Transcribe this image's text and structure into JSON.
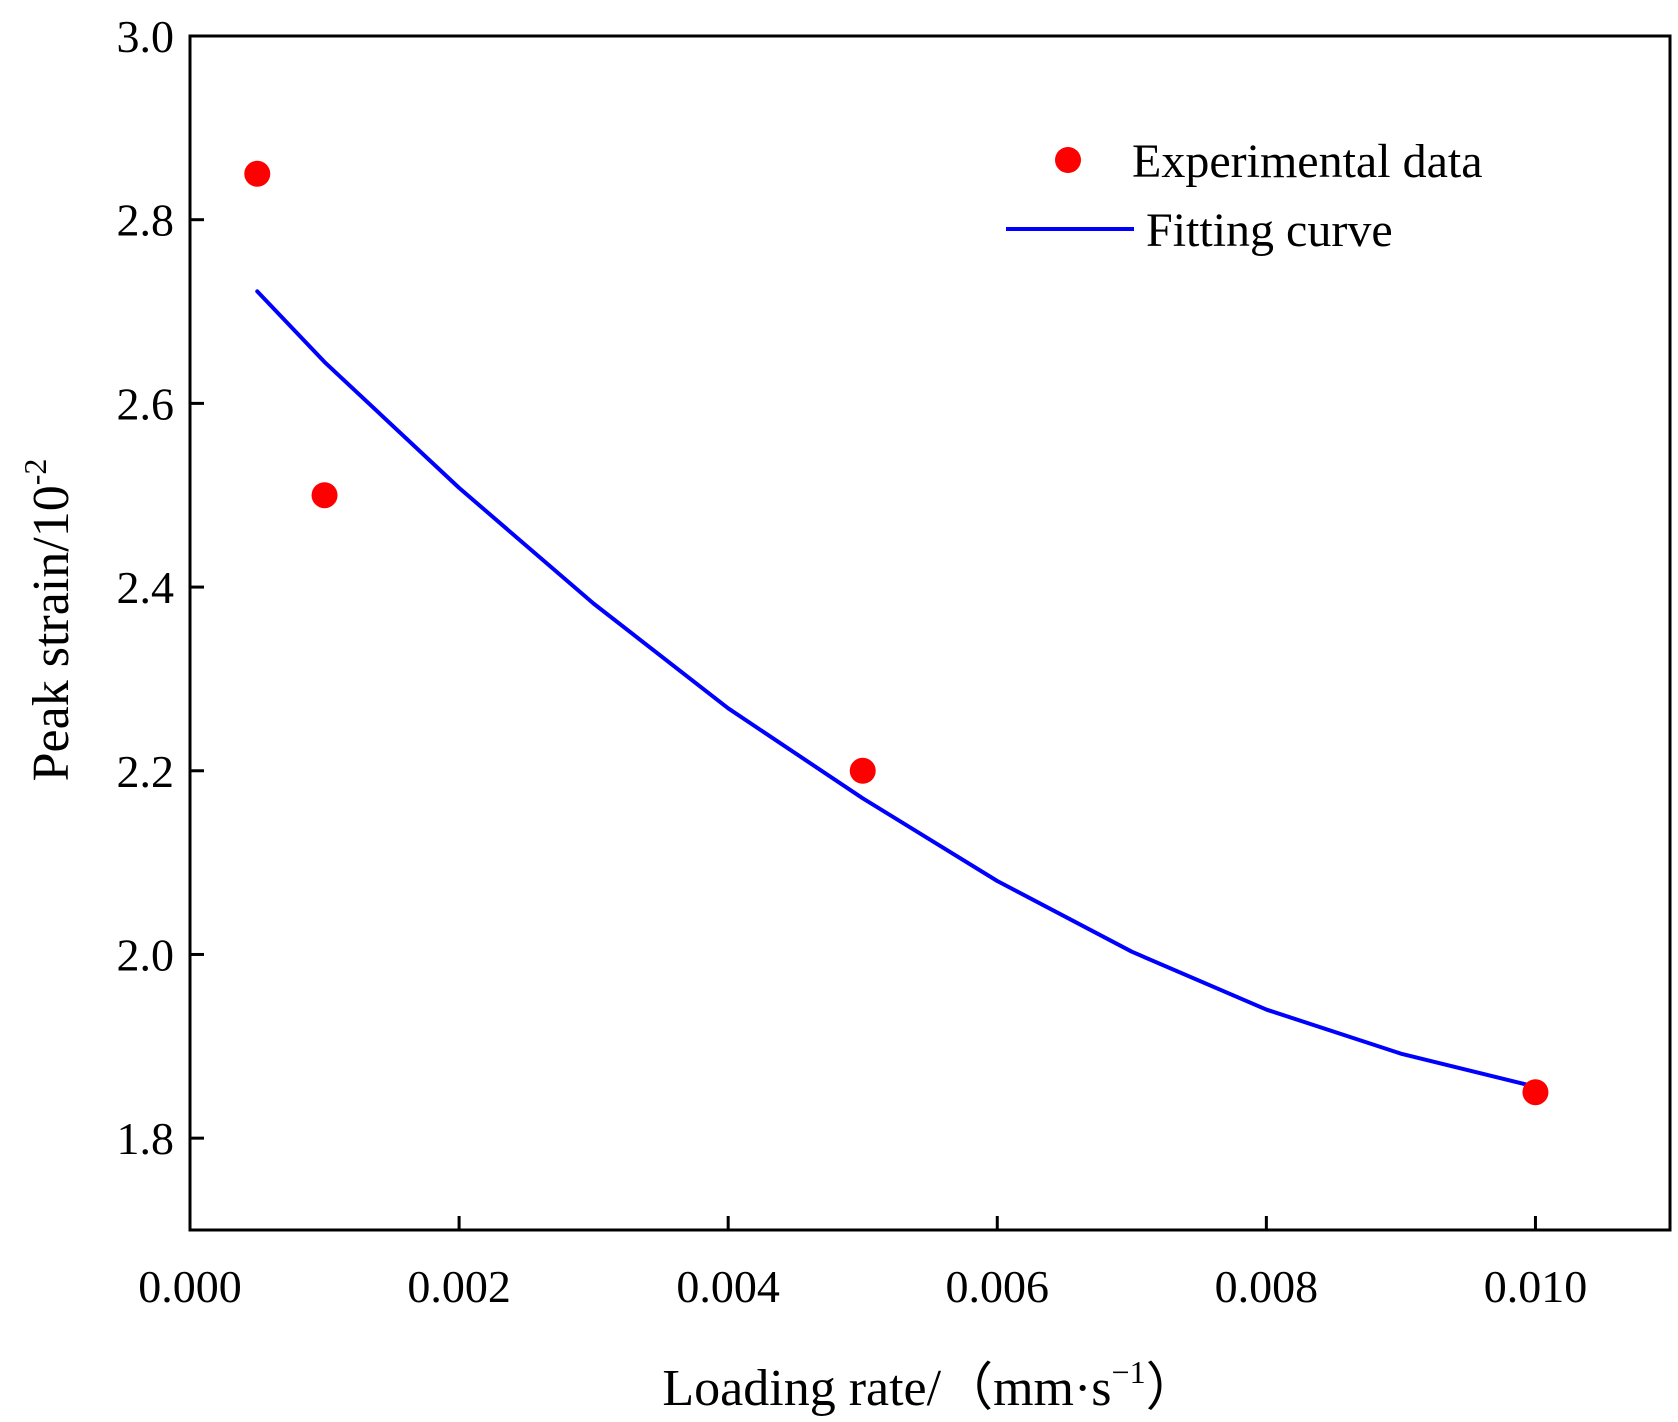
{
  "chart_data": {
    "type": "scatter",
    "x_label": {
      "main": "Loading rate/（mm·s",
      "sup": "−1",
      "tail": "）"
    },
    "y_label": {
      "main": "Peak strain/10",
      "sup": "-2"
    },
    "xlim": [
      0.0,
      0.011
    ],
    "ylim": [
      1.7,
      3.0
    ],
    "x_ticks": [
      0.0,
      0.002,
      0.004,
      0.006,
      0.008,
      0.01
    ],
    "x_tick_labels": [
      "0.000",
      "0.002",
      "0.004",
      "0.006",
      "0.008",
      "0.010"
    ],
    "y_ticks": [
      1.8,
      2.0,
      2.2,
      2.4,
      2.6,
      2.8,
      3.0
    ],
    "y_tick_labels": [
      "1.8",
      "2.0",
      "2.2",
      "2.4",
      "2.6",
      "2.8",
      "3.0"
    ],
    "series": [
      {
        "name": "Experimental data",
        "kind": "scatter",
        "color": "#ff0000",
        "x": [
          0.0005,
          0.001,
          0.005,
          0.01
        ],
        "y": [
          2.85,
          2.5,
          2.2,
          1.85
        ]
      },
      {
        "name": "Fitting curve",
        "kind": "line",
        "color": "#0000ff",
        "x": [
          0.0005,
          0.001,
          0.002,
          0.003,
          0.004,
          0.005,
          0.006,
          0.007,
          0.008,
          0.009,
          0.01
        ],
        "y": [
          2.722,
          2.645,
          2.508,
          2.382,
          2.268,
          2.17,
          2.08,
          2.003,
          1.94,
          1.892,
          1.856
        ]
      }
    ],
    "legend": {
      "position": "top-right",
      "entries": [
        "Experimental data",
        "Fitting curve"
      ]
    }
  }
}
